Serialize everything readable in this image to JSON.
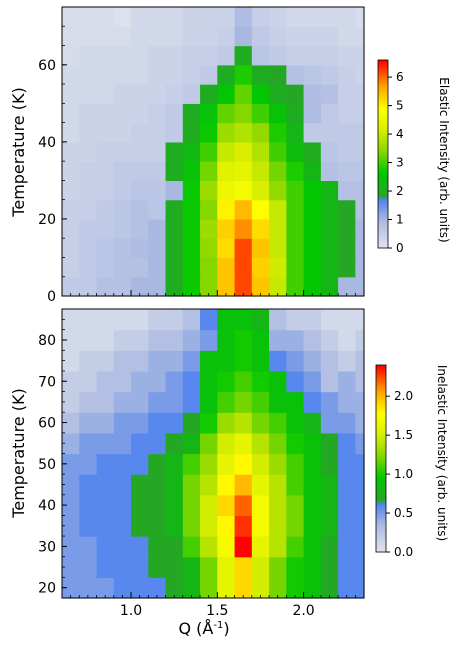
{
  "chart_data": [
    {
      "type": "heatmap",
      "id": "elastic",
      "xlabel": "",
      "ylabel": "Temperature (K)",
      "xlim": [
        0.6,
        2.35
      ],
      "ylim": [
        0,
        75
      ],
      "x_ticks": [
        1.0,
        1.5,
        2.0
      ],
      "y_ticks": [
        0,
        20,
        40,
        60
      ],
      "y_tick_labels": [
        "0",
        "20",
        "40",
        "60"
      ],
      "x_bin_start": 0.6,
      "x_bin_width": 0.1,
      "y_bin_start": 0,
      "y_bin_width": 5,
      "colorbar": {
        "label": "Elastic Intensity (arb. units)",
        "range": [
          0,
          6.6
        ],
        "ticks": [
          0,
          1,
          2,
          3,
          4,
          5,
          6
        ],
        "tick_labels": [
          "0",
          "1",
          "2",
          "3",
          "4",
          "5",
          "6"
        ]
      },
      "z": [
        [
          0.6,
          0.6,
          0.8,
          0.8,
          1.0,
          1.0,
          2.0,
          2.7,
          3.4,
          5.4,
          6.2,
          5.4,
          4.0,
          3.0,
          2.6,
          2.2,
          1.0,
          1.0,
          1.0,
          0.9
        ],
        [
          0.5,
          0.6,
          0.7,
          0.8,
          0.8,
          1.0,
          2.0,
          2.7,
          3.4,
          5.4,
          6.2,
          5.3,
          4.1,
          3.0,
          2.6,
          2.2,
          1.9,
          1.0,
          1.0,
          0.9
        ],
        [
          0.5,
          0.6,
          0.7,
          0.8,
          0.9,
          1.0,
          2.0,
          2.7,
          3.5,
          5.2,
          6.2,
          5.4,
          4.0,
          3.0,
          2.6,
          2.2,
          1.9,
          1.0,
          1.0,
          0.9
        ],
        [
          0.5,
          0.6,
          0.6,
          0.7,
          0.8,
          1.0,
          2.0,
          2.7,
          3.6,
          5.3,
          5.8,
          5.2,
          4.0,
          3.0,
          2.6,
          2.2,
          1.9,
          1.0,
          1.0,
          0.8
        ],
        [
          0.5,
          0.5,
          0.6,
          0.7,
          0.8,
          0.7,
          2.0,
          2.7,
          3.4,
          5.0,
          5.5,
          4.9,
          4.0,
          3.0,
          2.6,
          2.2,
          1.9,
          0.8,
          0.8,
          0.8
        ],
        [
          0.4,
          0.5,
          0.5,
          0.6,
          0.7,
          0.7,
          1.0,
          2.7,
          3.6,
          4.5,
          4.7,
          4.2,
          3.5,
          3.0,
          2.6,
          2.2,
          0.8,
          0.8,
          0.7,
          0.7
        ],
        [
          0.4,
          0.5,
          0.5,
          0.6,
          0.6,
          0.6,
          2.0,
          2.5,
          3.3,
          4.3,
          4.4,
          4.0,
          3.3,
          2.8,
          2.2,
          0.8,
          0.7,
          0.7,
          0.6,
          0.6
        ],
        [
          0.4,
          0.4,
          0.5,
          0.5,
          0.5,
          0.5,
          2.0,
          2.3,
          3.0,
          4.0,
          4.2,
          3.8,
          3.0,
          2.4,
          2.0,
          0.7,
          0.6,
          0.6,
          0.5,
          0.5
        ],
        [
          0.3,
          0.4,
          0.4,
          0.4,
          0.5,
          0.5,
          0.6,
          2.0,
          2.7,
          3.6,
          3.8,
          3.5,
          2.8,
          2.2,
          0.6,
          0.6,
          0.6,
          0.6,
          0.5,
          0.5
        ],
        [
          0.3,
          0.4,
          0.4,
          0.4,
          0.4,
          0.5,
          0.6,
          2.0,
          2.5,
          3.2,
          3.4,
          3.0,
          2.5,
          2.0,
          0.9,
          0.6,
          0.5,
          0.5,
          0.5,
          0.4
        ],
        [
          0.3,
          0.3,
          0.3,
          0.4,
          0.4,
          0.4,
          0.5,
          0.6,
          2.0,
          2.6,
          3.2,
          2.6,
          2.0,
          1.9,
          0.9,
          0.8,
          0.5,
          0.5,
          0.4,
          0.4
        ],
        [
          0.3,
          0.3,
          0.3,
          0.3,
          0.3,
          0.4,
          0.4,
          0.5,
          0.6,
          2.0,
          2.8,
          2.0,
          1.9,
          0.8,
          0.7,
          0.6,
          0.5,
          0.4,
          0.4,
          0.4
        ],
        [
          0.2,
          0.3,
          0.3,
          0.3,
          0.3,
          0.4,
          0.4,
          0.5,
          0.5,
          0.6,
          2.0,
          0.7,
          0.6,
          0.5,
          0.5,
          0.5,
          0.4,
          0.4,
          0.3,
          0.3
        ],
        [
          0.2,
          0.2,
          0.2,
          0.2,
          0.3,
          0.3,
          0.3,
          0.4,
          0.4,
          0.5,
          1.0,
          0.6,
          0.5,
          0.4,
          0.4,
          0.4,
          0.3,
          0.3,
          0.3,
          0.2
        ],
        [
          0.2,
          0.2,
          0.2,
          0.1,
          0.3,
          0.3,
          0.3,
          0.4,
          0.4,
          0.4,
          0.9,
          0.5,
          0.4,
          0.3,
          0.3,
          0.3,
          0.3,
          0.2,
          0.2,
          0.2
        ]
      ]
    },
    {
      "type": "heatmap",
      "id": "inelastic",
      "xlabel": "Q (Å",
      "xlabel_sup": "-1",
      "xlabel_end": ")",
      "ylabel": "Temperature (K)",
      "xlim": [
        0.6,
        2.35
      ],
      "ylim": [
        17.5,
        87.5
      ],
      "x_ticks": [
        1.0,
        1.5,
        2.0
      ],
      "x_tick_labels": [
        "1.0",
        "1.5",
        "2.0"
      ],
      "y_ticks": [
        20,
        30,
        40,
        50,
        60,
        70,
        80
      ],
      "y_tick_labels": [
        "20",
        "30",
        "40",
        "50",
        "60",
        "70",
        "80"
      ],
      "x_bin_start": 0.6,
      "x_bin_width": 0.1,
      "y_bin_start": 17.5,
      "y_bin_width": 5,
      "colorbar": {
        "label": "Inelastic Intensity (arb. units)",
        "range": [
          0,
          2.4
        ],
        "ticks": [
          0.0,
          0.5,
          1.0,
          1.5,
          2.0
        ],
        "tick_labels": [
          "0.0",
          "0.5",
          "1.0",
          "1.5",
          "2.0"
        ]
      },
      "z": [
        [
          0.5,
          0.5,
          0.5,
          0.6,
          0.6,
          0.6,
          0.7,
          0.8,
          1.2,
          1.6,
          1.9,
          1.5,
          1.2,
          1.0,
          0.9,
          0.7,
          0.6,
          0.6,
          0.5,
          0.5
        ],
        [
          0.5,
          0.5,
          0.6,
          0.6,
          0.6,
          0.7,
          0.7,
          0.8,
          1.2,
          1.6,
          1.9,
          1.5,
          1.2,
          1.0,
          0.9,
          0.7,
          0.6,
          0.6,
          0.5,
          0.5
        ],
        [
          0.5,
          0.5,
          0.6,
          0.6,
          0.6,
          0.7,
          0.7,
          1.1,
          1.4,
          1.7,
          2.4,
          1.6,
          1.4,
          1.1,
          0.9,
          0.7,
          0.6,
          0.6,
          0.5,
          0.5
        ],
        [
          0.5,
          0.6,
          0.6,
          0.6,
          0.7,
          0.7,
          0.8,
          1.2,
          1.5,
          1.8,
          2.3,
          1.7,
          1.4,
          1.2,
          0.9,
          0.8,
          0.6,
          0.6,
          0.6,
          0.5
        ],
        [
          0.5,
          0.6,
          0.6,
          0.6,
          0.7,
          0.7,
          0.8,
          1.2,
          1.5,
          1.9,
          2.2,
          1.7,
          1.4,
          1.2,
          0.9,
          0.8,
          0.6,
          0.6,
          0.6,
          0.5
        ],
        [
          0.5,
          0.6,
          0.6,
          0.6,
          0.7,
          0.7,
          0.8,
          1.2,
          1.4,
          1.8,
          2.0,
          1.6,
          1.4,
          1.1,
          0.9,
          0.8,
          0.6,
          0.6,
          0.6,
          0.5
        ],
        [
          0.5,
          0.5,
          0.6,
          0.6,
          0.6,
          0.7,
          0.8,
          1.1,
          1.3,
          1.6,
          1.8,
          1.5,
          1.3,
          1.1,
          0.9,
          0.7,
          0.6,
          0.6,
          0.5,
          0.5
        ],
        [
          0.4,
          0.5,
          0.5,
          0.5,
          0.6,
          0.6,
          0.7,
          0.8,
          1.2,
          1.5,
          1.6,
          1.4,
          1.2,
          1.0,
          0.9,
          0.7,
          0.6,
          0.5,
          0.5,
          0.4
        ],
        [
          0.3,
          0.4,
          0.4,
          0.5,
          0.5,
          0.6,
          0.6,
          0.7,
          1.0,
          1.3,
          1.4,
          1.2,
          1.1,
          0.9,
          0.8,
          0.5,
          0.5,
          0.4,
          0.4,
          0.4
        ],
        [
          0.2,
          0.3,
          0.3,
          0.4,
          0.4,
          0.5,
          0.5,
          0.6,
          0.9,
          1.1,
          1.2,
          1.1,
          0.9,
          0.9,
          0.6,
          0.5,
          0.4,
          0.4,
          0.3,
          0.3
        ],
        [
          0.2,
          0.2,
          0.3,
          0.3,
          0.4,
          0.4,
          0.5,
          0.6,
          0.9,
          1.0,
          1.1,
          1.0,
          0.9,
          0.6,
          0.5,
          0.3,
          0.4,
          0.3,
          0.4,
          0.2
        ],
        [
          0.1,
          0.2,
          0.2,
          0.3,
          0.3,
          0.4,
          0.4,
          0.5,
          0.9,
          0.9,
          1.0,
          0.9,
          0.6,
          0.5,
          0.4,
          0.3,
          0.2,
          0.3,
          0.2,
          0.2
        ],
        [
          0.1,
          0.1,
          0.1,
          0.2,
          0.2,
          0.3,
          0.3,
          0.4,
          0.5,
          0.9,
          1.0,
          0.9,
          0.4,
          0.4,
          0.3,
          0.2,
          0.1,
          0.2,
          0.1,
          0.1
        ],
        [
          0.1,
          0.1,
          0.1,
          0.1,
          0.1,
          0.2,
          0.2,
          0.3,
          0.6,
          0.9,
          0.9,
          0.8,
          0.3,
          0.2,
          0.2,
          0.1,
          0.1,
          0.1,
          0.1,
          0.1
        ],
        [
          0.1,
          0.1,
          0.1,
          0.1,
          0.1,
          0.1,
          0.2,
          0.4,
          0.5,
          0.9,
          0.9,
          0.1,
          0.1,
          0.1,
          0.1,
          0.1,
          0.1,
          0.1,
          0.1,
          0.1
        ]
      ]
    }
  ]
}
